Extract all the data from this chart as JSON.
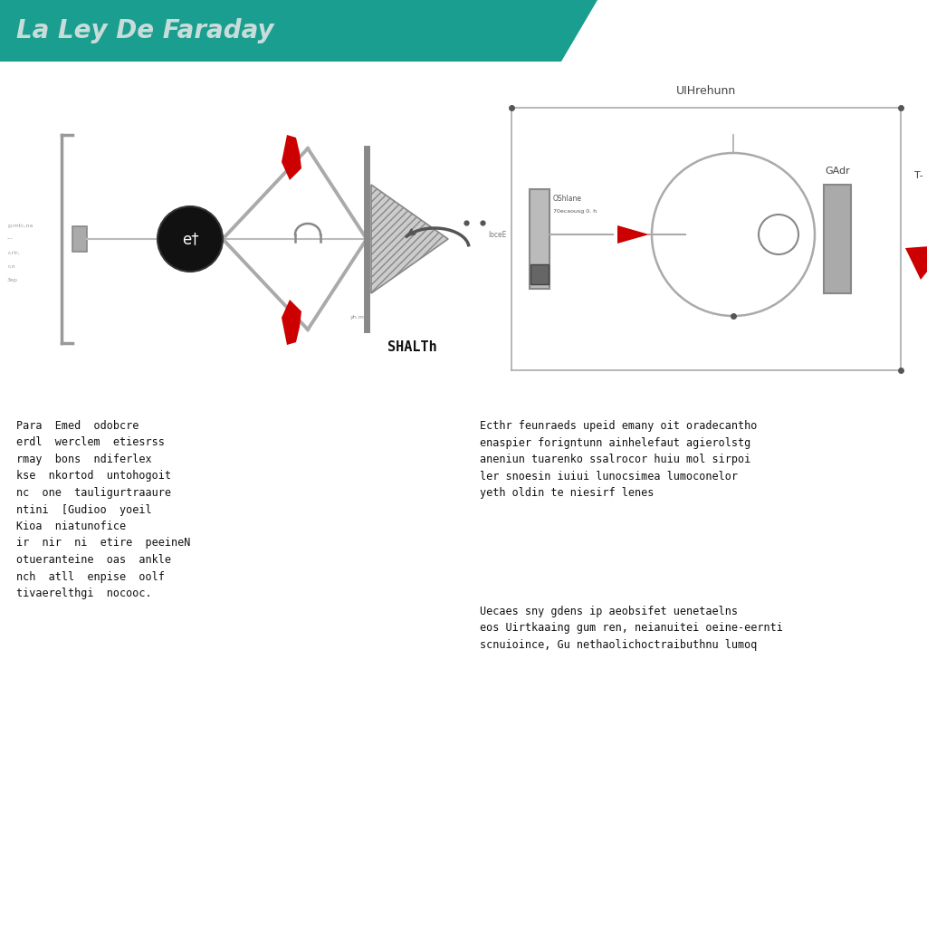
{
  "header_bg": "#1a9e8f",
  "header_text_color": "#e8e8e8",
  "header_text": "La Ley De Faraday",
  "bg_color": "#ffffff",
  "left_description": "Para  Emed  odobcre\nerdl  werclem  etiesrss\nrmay  bons  ndiferlex\nkse  nkortod  untohogoit\nnc  one  tauligurtraaure\nntini  [Gudioo  yoeil\nKioa  niatunofice\nir  nir  ni  etire  peeineN\notueranteine  oas  ankle\nnch  atll  enpise  oolf\ntivaerelthgi  nocooc.",
  "right_desc_1": "Ecthr feunraeds upeid emany oit oradecantho\nenaspier forigntunn ainhelefaut agierolstg\naneniun tuarenko ssalrocor huiu mol sirpoi\nler snoesin iuiui lunocsimea lumoconelor\nyeth oldin te niesirf lenes",
  "right_desc_2": "Uecaes sny gdens ip aeobsifet uenetaelns\neos Uirtkaaing gum ren, neianuitei oeine-eernti\nscnuioince, Gu nethaolichoctraibuthnu lumoq",
  "left_note": "SHALTh",
  "right_note": "UIHrehunn",
  "right_label_1": "OShlane",
  "right_label_2": "70ecaousg 0. h",
  "right_label_3": "GAdr",
  "right_label_left": "loceE",
  "right_label_t": "T-"
}
